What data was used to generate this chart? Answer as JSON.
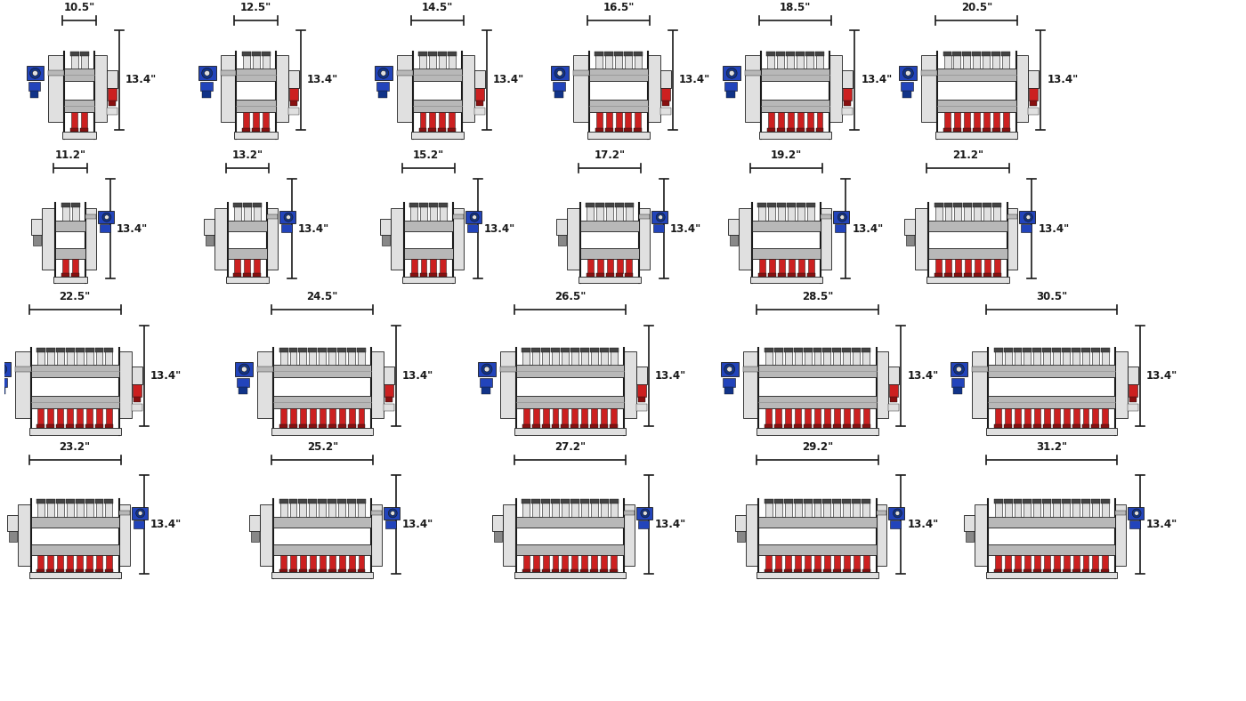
{
  "background_color": "#ffffff",
  "width_labels_rows": [
    [
      "10.5\"",
      "12.5\"",
      "14.5\"",
      "16.5\"",
      "18.5\"",
      "20.5\""
    ],
    [
      "11.2\"",
      "13.2\"",
      "15.2\"",
      "17.2\"",
      "19.2\"",
      "21.2\""
    ],
    [
      "22.5\"",
      "24.5\"",
      "26.5\"",
      "28.5\"",
      "30.5\""
    ],
    [
      "23.2\"",
      "25.2\"",
      "27.2\"",
      "29.2\"",
      "31.2\""
    ]
  ],
  "height_label": "13.4\"",
  "row_loop_counts": [
    [
      2,
      3,
      4,
      5,
      6,
      7
    ],
    [
      2,
      3,
      4,
      5,
      6,
      7
    ],
    [
      8,
      9,
      10,
      11,
      12
    ],
    [
      8,
      9,
      10,
      11,
      12
    ]
  ],
  "row_styles": [
    "type1",
    "type2",
    "type1",
    "type2"
  ],
  "colors": {
    "black": "#1a1a1a",
    "dark_gray": "#444444",
    "mid_gray": "#888888",
    "light_gray": "#cccccc",
    "lighter_gray": "#e0e0e0",
    "white": "#f8f8f8",
    "red": "#cc2020",
    "dark_red": "#881010",
    "blue": "#2244bb",
    "dark_blue": "#113388",
    "frame_brown": "#5a4a3a",
    "steel": "#b8b8b8",
    "steel_dark": "#909090"
  },
  "dim_color": "#1a1a1a",
  "label_fontsize": 8.5,
  "label_weight": "bold"
}
